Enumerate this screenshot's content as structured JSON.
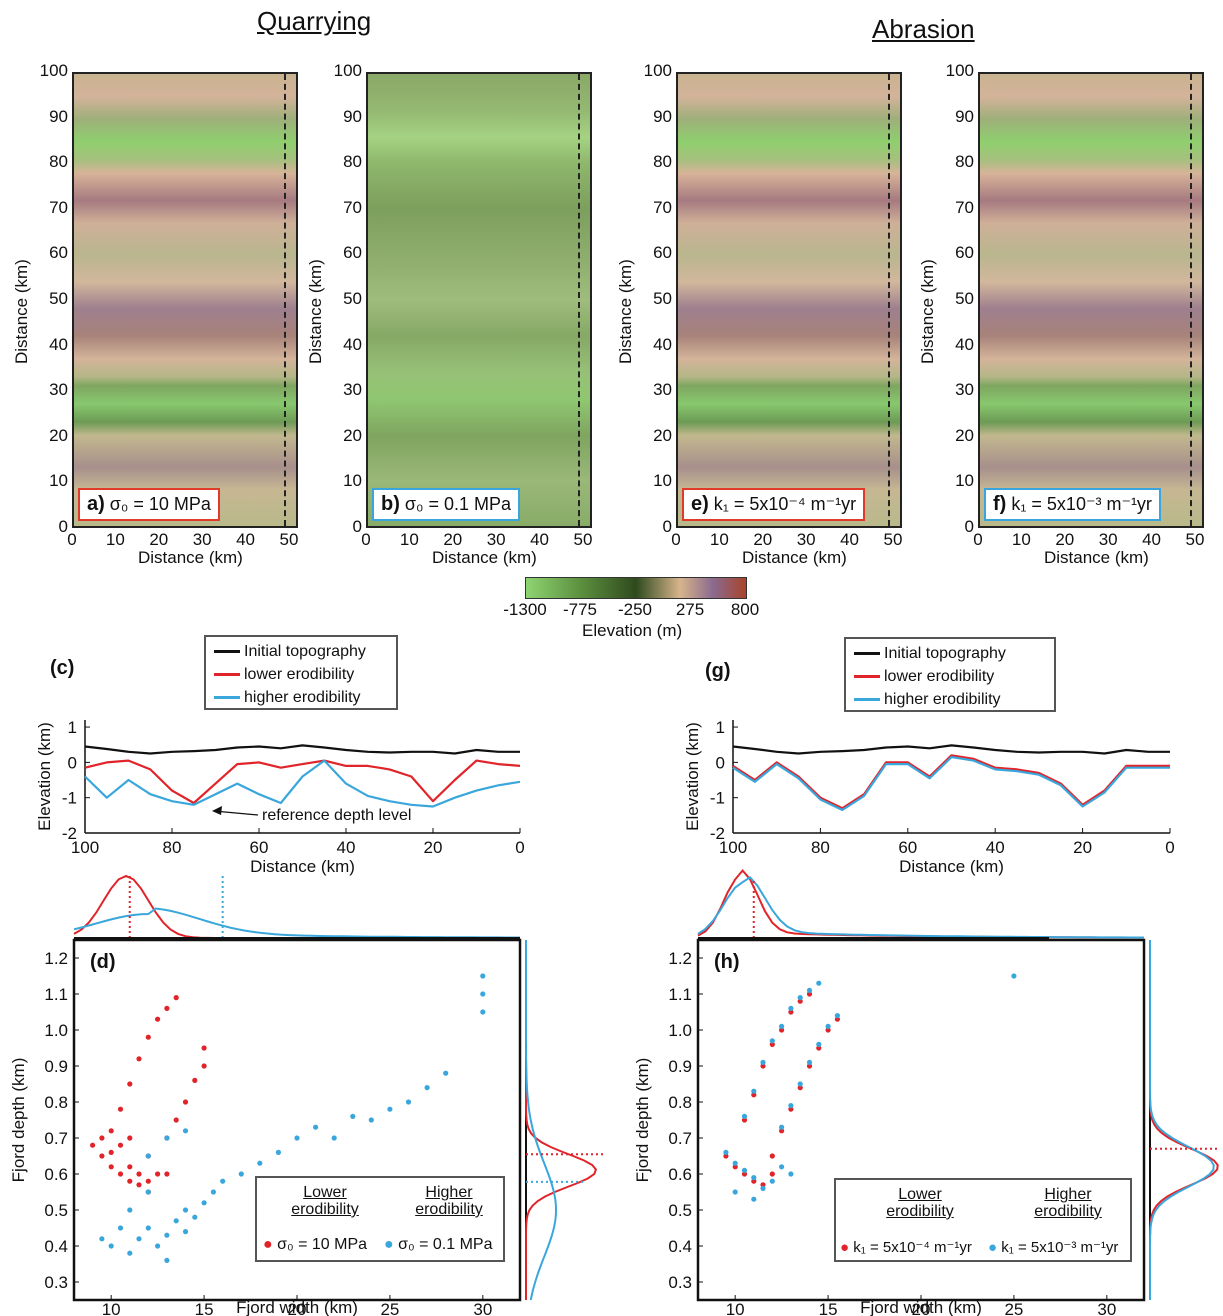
{
  "headers": {
    "quarrying": "Quarrying",
    "abrasion": "Abrasion"
  },
  "maps": [
    {
      "id": "a",
      "letter": "a)",
      "label": "σ₀ = 10 MPa",
      "variant": "low",
      "box_color": "#e03a2a"
    },
    {
      "id": "b",
      "letter": "b)",
      "label": "σ₀ = 0.1 MPa",
      "variant": "high",
      "box_color": "#3aa4dc"
    },
    {
      "id": "e",
      "letter": "e)",
      "label": "k₁ = 5x10⁻⁴ m⁻¹yr",
      "variant": "low",
      "box_color": "#e03a2a"
    },
    {
      "id": "f",
      "letter": "f)",
      "label": "k₁ = 5x10⁻³ m⁻¹yr",
      "variant": "low",
      "box_color": "#3aa4dc"
    }
  ],
  "map_axes": {
    "xlabel": "Distance (km)",
    "ylabel": "Distance (km)",
    "xticks": [
      0,
      10,
      20,
      30,
      40,
      50
    ],
    "yticks": [
      0,
      10,
      20,
      30,
      40,
      50,
      60,
      70,
      80,
      90,
      100
    ]
  },
  "colorbar": {
    "ticks": [
      "-1300",
      "-775",
      "-250",
      "275",
      "800"
    ],
    "label": "Elevation (m)"
  },
  "profile_legend": [
    "Initial topography",
    "lower erodibility",
    "higher erodibility"
  ],
  "colors": {
    "initial": "#111111",
    "lower": "#e0242a",
    "higher": "#3aa7dc"
  },
  "profiles": {
    "tag_c": "(c)",
    "tag_g": "(g)",
    "xlabel": "Distance (km)",
    "ylabel": "Elevation (km)",
    "xticks": [
      100,
      80,
      60,
      40,
      20,
      0
    ],
    "yticks": [
      1,
      0,
      -1,
      -2
    ],
    "annotation": "reference depth level"
  },
  "scatter": {
    "tag_d": "(d)",
    "tag_h": "(h)",
    "xlabel": "Fjord width (km)",
    "ylabel": "Fjord depth (km)",
    "xticks": [
      10,
      15,
      20,
      25,
      30
    ],
    "yticks": [
      0.3,
      0.4,
      0.5,
      0.6,
      0.7,
      0.8,
      0.9,
      1.0,
      1.1,
      1.2
    ],
    "legend_d": {
      "low_title": "Lower erodibility",
      "high_title": "Higher erodibility",
      "low_label": "σ₀ = 10 MPa",
      "high_label": "σ₀ = 0.1 MPa"
    },
    "legend_h": {
      "low_title": "Lower erodibility",
      "high_title": "Higher erodibility",
      "low_label": "k₁ = 5x10⁻⁴ m⁻¹yr",
      "high_label": "k₁ = 5x10⁻³ m⁻¹yr"
    }
  },
  "chart_data": [
    {
      "type": "line",
      "panel": "c",
      "xlabel": "Distance (km)",
      "ylabel": "Elevation (km)",
      "xlim": [
        100,
        0
      ],
      "ylim": [
        -2,
        1.2
      ],
      "x": [
        100,
        95,
        90,
        85,
        80,
        75,
        70,
        65,
        60,
        55,
        50,
        45,
        40,
        35,
        30,
        25,
        20,
        15,
        10,
        5,
        0
      ],
      "series": [
        {
          "name": "Initial topography",
          "values": [
            0.45,
            0.38,
            0.3,
            0.25,
            0.3,
            0.32,
            0.35,
            0.42,
            0.45,
            0.4,
            0.48,
            0.42,
            0.35,
            0.3,
            0.28,
            0.3,
            0.3,
            0.25,
            0.35,
            0.3,
            0.3
          ]
        },
        {
          "name": "lower erodibility",
          "values": [
            -0.15,
            0.0,
            0.05,
            -0.2,
            -0.8,
            -1.15,
            -0.6,
            -0.05,
            0.0,
            -0.15,
            -0.05,
            0.05,
            -0.1,
            -0.1,
            -0.2,
            -0.4,
            -1.1,
            -0.5,
            0.05,
            -0.05,
            -0.1
          ]
        },
        {
          "name": "higher erodibility",
          "values": [
            -0.4,
            -1.0,
            -0.5,
            -0.9,
            -1.1,
            -1.2,
            -0.9,
            -0.6,
            -0.9,
            -1.15,
            -0.4,
            0.05,
            -0.6,
            -0.95,
            -1.1,
            -1.2,
            -1.25,
            -1.0,
            -0.8,
            -0.65,
            -0.55
          ]
        }
      ]
    },
    {
      "type": "line",
      "panel": "g",
      "xlabel": "Distance (km)",
      "ylabel": "Elevation (km)",
      "xlim": [
        100,
        0
      ],
      "ylim": [
        -2,
        1.2
      ],
      "x": [
        100,
        95,
        90,
        85,
        80,
        75,
        70,
        65,
        60,
        55,
        50,
        45,
        40,
        35,
        30,
        25,
        20,
        15,
        10,
        5,
        0
      ],
      "series": [
        {
          "name": "Initial topography",
          "values": [
            0.45,
            0.38,
            0.3,
            0.25,
            0.3,
            0.32,
            0.35,
            0.42,
            0.45,
            0.4,
            0.48,
            0.42,
            0.35,
            0.3,
            0.28,
            0.3,
            0.3,
            0.25,
            0.35,
            0.3,
            0.3
          ]
        },
        {
          "name": "lower erodibility",
          "values": [
            -0.1,
            -0.5,
            0.0,
            -0.4,
            -1.0,
            -1.3,
            -0.9,
            0.0,
            0.0,
            -0.4,
            0.2,
            0.1,
            -0.15,
            -0.2,
            -0.3,
            -0.6,
            -1.2,
            -0.8,
            -0.1,
            -0.1,
            -0.1
          ]
        },
        {
          "name": "higher erodibility",
          "values": [
            -0.15,
            -0.55,
            -0.05,
            -0.45,
            -1.05,
            -1.35,
            -0.95,
            -0.05,
            -0.05,
            -0.45,
            0.15,
            0.05,
            -0.2,
            -0.25,
            -0.35,
            -0.65,
            -1.25,
            -0.85,
            -0.15,
            -0.15,
            -0.15
          ]
        }
      ]
    },
    {
      "type": "scatter",
      "panel": "d",
      "xlabel": "Fjord width (km)",
      "ylabel": "Fjord depth (km)",
      "xlim": [
        8,
        32
      ],
      "ylim": [
        0.25,
        1.25
      ],
      "series": [
        {
          "name": "σ₀ = 10 MPa",
          "points": [
            [
              9.5,
              0.65
            ],
            [
              10,
              0.62
            ],
            [
              10.5,
              0.6
            ],
            [
              11,
              0.58
            ],
            [
              11.5,
              0.57
            ],
            [
              12,
              0.58
            ],
            [
              12.5,
              0.6
            ],
            [
              10,
              0.72
            ],
            [
              10.5,
              0.78
            ],
            [
              11,
              0.85
            ],
            [
              11.5,
              0.92
            ],
            [
              12,
              0.98
            ],
            [
              12.5,
              1.03
            ],
            [
              13,
              1.06
            ],
            [
              13.5,
              1.09
            ],
            [
              12,
              0.65
            ],
            [
              13,
              0.7
            ],
            [
              13.5,
              0.75
            ],
            [
              14,
              0.8
            ],
            [
              14.5,
              0.86
            ],
            [
              15,
              0.9
            ],
            [
              15,
              0.95
            ],
            [
              9,
              0.68
            ],
            [
              9.5,
              0.7
            ],
            [
              10,
              0.66
            ],
            [
              11,
              0.62
            ],
            [
              11.5,
              0.6
            ],
            [
              12,
              0.55
            ],
            [
              13,
              0.6
            ],
            [
              11,
              0.7
            ],
            [
              10.5,
              0.68
            ]
          ]
        },
        {
          "name": "σ₀ = 0.1 MPa",
          "points": [
            [
              9.5,
              0.42
            ],
            [
              10,
              0.4
            ],
            [
              10.5,
              0.45
            ],
            [
              11,
              0.38
            ],
            [
              11.5,
              0.42
            ],
            [
              12,
              0.45
            ],
            [
              12.5,
              0.4
            ],
            [
              13,
              0.43
            ],
            [
              13.5,
              0.47
            ],
            [
              14,
              0.5
            ],
            [
              14.5,
              0.48
            ],
            [
              15,
              0.52
            ],
            [
              15.5,
              0.55
            ],
            [
              16,
              0.58
            ],
            [
              17,
              0.6
            ],
            [
              18,
              0.63
            ],
            [
              19,
              0.66
            ],
            [
              20,
              0.7
            ],
            [
              21,
              0.73
            ],
            [
              22,
              0.7
            ],
            [
              23,
              0.76
            ],
            [
              24,
              0.75
            ],
            [
              25,
              0.78
            ],
            [
              26,
              0.8
            ],
            [
              27,
              0.84
            ],
            [
              28,
              0.88
            ],
            [
              12,
              0.65
            ],
            [
              13,
              0.7
            ],
            [
              14,
              0.72
            ],
            [
              30,
              1.05
            ],
            [
              30,
              1.1
            ],
            [
              30,
              1.15
            ],
            [
              11,
              0.5
            ],
            [
              12,
              0.55
            ],
            [
              13,
              0.36
            ],
            [
              14,
              0.44
            ]
          ]
        }
      ]
    },
    {
      "type": "scatter",
      "panel": "h",
      "xlabel": "Fjord width (km)",
      "ylabel": "Fjord depth (km)",
      "xlim": [
        8,
        32
      ],
      "ylim": [
        0.25,
        1.25
      ],
      "series": [
        {
          "name": "k₁ = 5x10⁻⁴ m⁻¹yr",
          "points": [
            [
              9.5,
              0.65
            ],
            [
              10,
              0.62
            ],
            [
              10.5,
              0.6
            ],
            [
              11,
              0.58
            ],
            [
              11.5,
              0.57
            ],
            [
              12,
              0.6
            ],
            [
              10.5,
              0.75
            ],
            [
              11,
              0.82
            ],
            [
              11.5,
              0.9
            ],
            [
              12,
              0.96
            ],
            [
              12.5,
              1.0
            ],
            [
              13,
              1.05
            ],
            [
              13.5,
              1.08
            ],
            [
              14,
              1.1
            ],
            [
              12,
              0.65
            ],
            [
              12.5,
              0.72
            ],
            [
              13,
              0.78
            ],
            [
              13.5,
              0.84
            ],
            [
              14,
              0.9
            ],
            [
              14.5,
              0.95
            ],
            [
              15,
              1.0
            ],
            [
              15.5,
              1.03
            ]
          ]
        },
        {
          "name": "k₁ = 5x10⁻³ m⁻¹yr",
          "points": [
            [
              9.5,
              0.66
            ],
            [
              10,
              0.63
            ],
            [
              10.5,
              0.61
            ],
            [
              11,
              0.59
            ],
            [
              11.5,
              0.56
            ],
            [
              12,
              0.58
            ],
            [
              12.5,
              0.62
            ],
            [
              13,
              0.6
            ],
            [
              10.5,
              0.76
            ],
            [
              11,
              0.83
            ],
            [
              11.5,
              0.91
            ],
            [
              12,
              0.97
            ],
            [
              12.5,
              1.01
            ],
            [
              13,
              1.06
            ],
            [
              13.5,
              1.09
            ],
            [
              14,
              1.11
            ],
            [
              14.5,
              1.13
            ],
            [
              12.5,
              0.73
            ],
            [
              13,
              0.79
            ],
            [
              13.5,
              0.85
            ],
            [
              14,
              0.91
            ],
            [
              14.5,
              0.96
            ],
            [
              15,
              1.01
            ],
            [
              15.5,
              1.04
            ],
            [
              25,
              1.15
            ],
            [
              10,
              0.55
            ],
            [
              11,
              0.53
            ]
          ]
        }
      ]
    }
  ]
}
